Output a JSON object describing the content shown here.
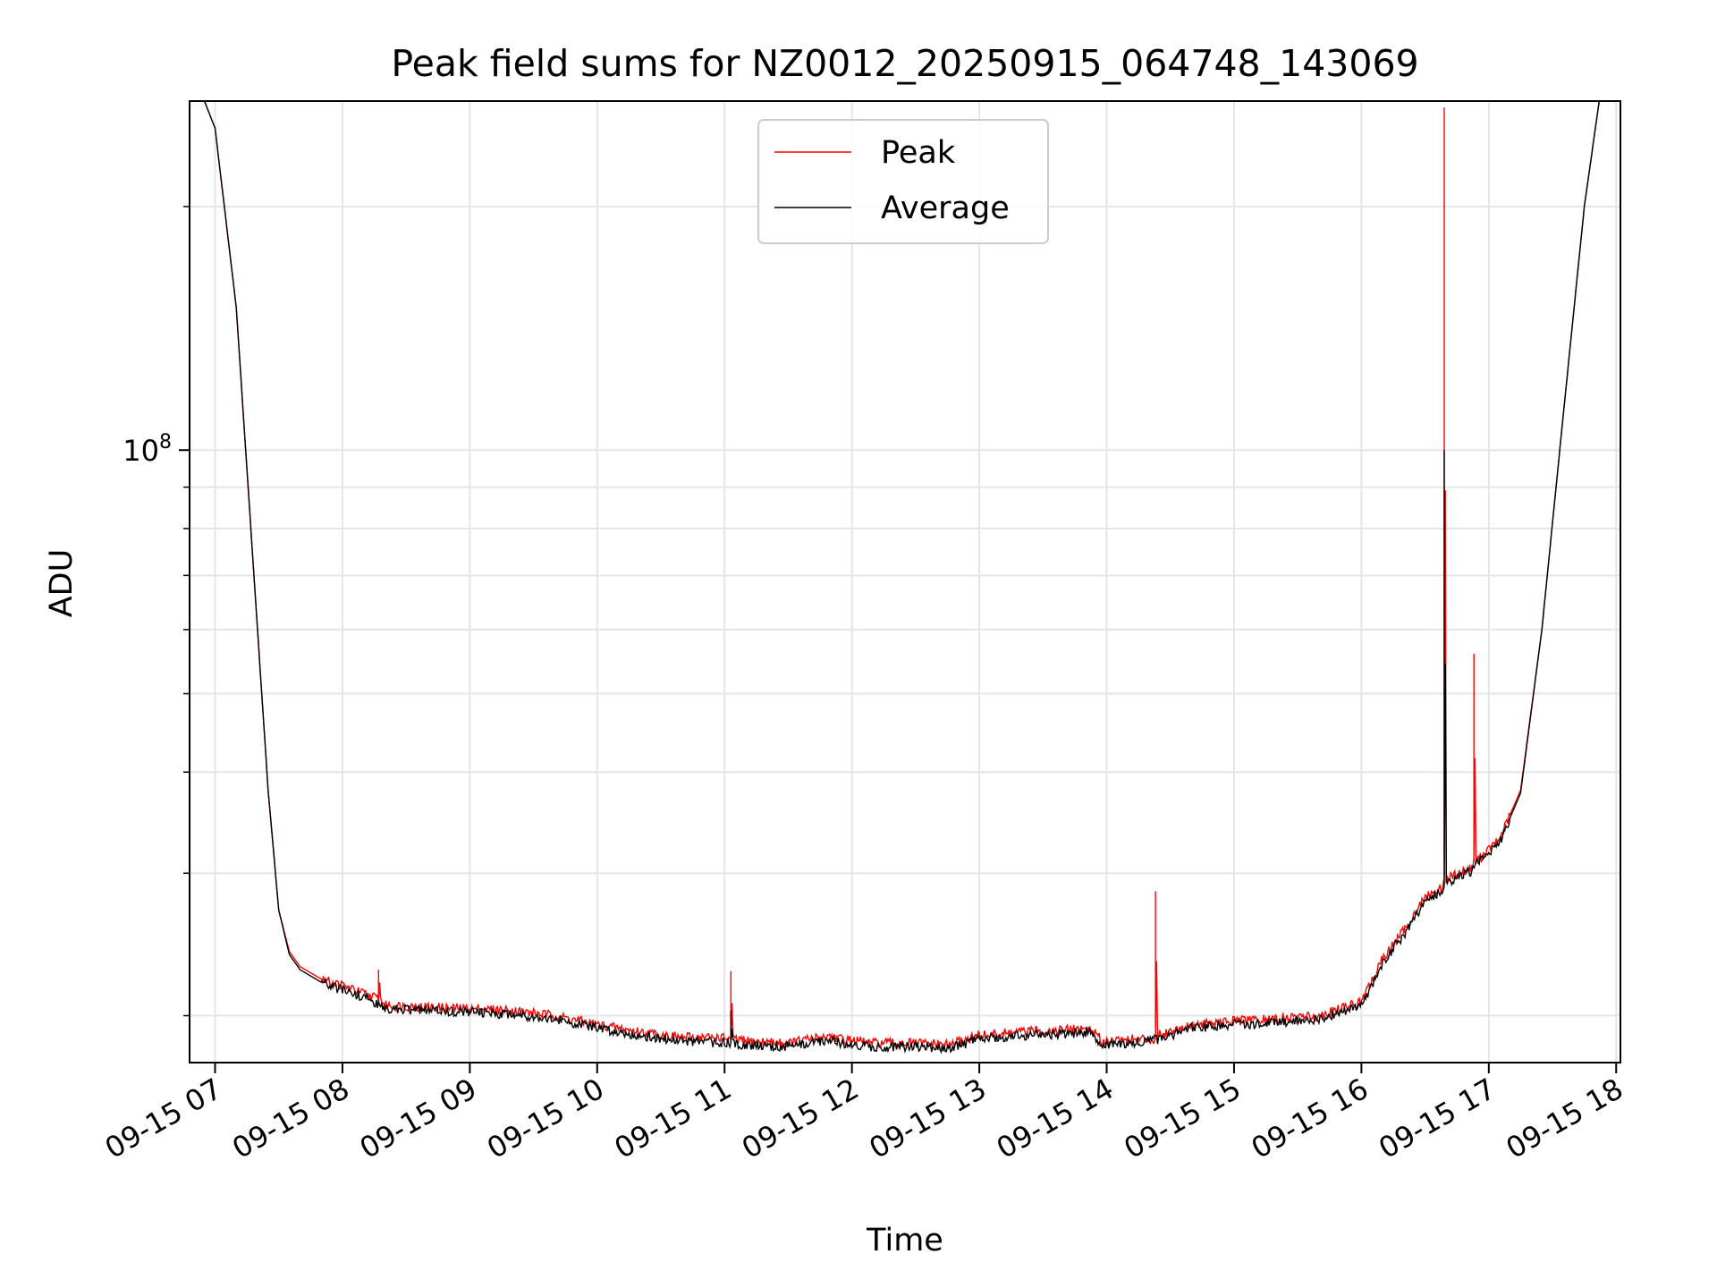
{
  "chart_data": {
    "type": "line",
    "title": "Peak field sums for NZ0012_20250915_064748_143069",
    "xlabel": "Time",
    "ylabel": "ADU",
    "yscale": "log",
    "xlim": [
      "2025-09-15 06:48",
      "2025-09-15 18:02"
    ],
    "ylim": [
      17500000,
      270000000
    ],
    "x_ticks": [
      "09-15 07",
      "09-15 08",
      "09-15 09",
      "09-15 10",
      "09-15 11",
      "09-15 12",
      "09-15 13",
      "09-15 14",
      "09-15 15",
      "09-15 16",
      "09-15 17",
      "09-15 18"
    ],
    "y_ticks": [
      {
        "value": 100000000,
        "base": "10",
        "exp": "8"
      }
    ],
    "grid": true,
    "legend": {
      "position": "top-center"
    },
    "series": [
      {
        "name": "Peak",
        "color": "#ff0000",
        "x": [
          "2025-09-15 06:48",
          "2025-09-15 06:55",
          "2025-09-15 07:00",
          "2025-09-15 07:10",
          "2025-09-15 07:20",
          "2025-09-15 07:25",
          "2025-09-15 07:30",
          "2025-09-15 07:35",
          "2025-09-15 07:40",
          "2025-09-15 07:50",
          "2025-09-15 08:00",
          "2025-09-15 08:10",
          "2025-09-15 08:17",
          "2025-09-15 08:17",
          "2025-09-15 08:18",
          "2025-09-15 08:20",
          "2025-09-15 08:40",
          "2025-09-15 09:00",
          "2025-09-15 09:20",
          "2025-09-15 09:40",
          "2025-09-15 10:00",
          "2025-09-15 10:20",
          "2025-09-15 10:40",
          "2025-09-15 10:58",
          "2025-09-15 11:03",
          "2025-09-15 11:03",
          "2025-09-15 11:04",
          "2025-09-15 11:10",
          "2025-09-15 11:30",
          "2025-09-15 11:50",
          "2025-09-15 11:55",
          "2025-09-15 12:10",
          "2025-09-15 12:30",
          "2025-09-15 12:45",
          "2025-09-15 13:00",
          "2025-09-15 13:20",
          "2025-09-15 13:40",
          "2025-09-15 13:52",
          "2025-09-15 13:58",
          "2025-09-15 14:10",
          "2025-09-15 14:23",
          "2025-09-15 14:23",
          "2025-09-15 14:24",
          "2025-09-15 14:40",
          "2025-09-15 15:00",
          "2025-09-15 15:20",
          "2025-09-15 15:40",
          "2025-09-15 16:00",
          "2025-09-15 16:10",
          "2025-09-15 16:20",
          "2025-09-15 16:30",
          "2025-09-15 16:38",
          "2025-09-15 16:39",
          "2025-09-15 16:39",
          "2025-09-15 16:40",
          "2025-09-15 16:52",
          "2025-09-15 16:53",
          "2025-09-15 16:53",
          "2025-09-15 16:54",
          "2025-09-15 17:05",
          "2025-09-15 17:15",
          "2025-09-15 17:25",
          "2025-09-15 17:35",
          "2025-09-15 17:45",
          "2025-09-15 17:52",
          "2025-09-15 18:02"
        ],
        "y": [
          270000000,
          270000000,
          250000000,
          150000000,
          60000000,
          38000000,
          27000000,
          24000000,
          23000000,
          22200000,
          21800000,
          21300000,
          21000000,
          22800000,
          21000000,
          20600000,
          20500000,
          20400000,
          20300000,
          20000000,
          19500000,
          19100000,
          18800000,
          18800000,
          18700000,
          22700000,
          18700000,
          18600000,
          18500000,
          18900000,
          18700000,
          18500000,
          18500000,
          18400000,
          18900000,
          19100000,
          19200000,
          19300000,
          18600000,
          18700000,
          18700000,
          28500000,
          18900000,
          19500000,
          19700000,
          19800000,
          20000000,
          20800000,
          23500000,
          25500000,
          28000000,
          28800000,
          29500000,
          265000000,
          29500000,
          30500000,
          31000000,
          56000000,
          31000000,
          33000000,
          38000000,
          60000000,
          110000000,
          200000000,
          270000000,
          270000000
        ]
      },
      {
        "name": "Average",
        "color": "#000000",
        "x": [
          "2025-09-15 06:48",
          "2025-09-15 06:55",
          "2025-09-15 07:00",
          "2025-09-15 07:10",
          "2025-09-15 07:20",
          "2025-09-15 07:25",
          "2025-09-15 07:30",
          "2025-09-15 07:35",
          "2025-09-15 07:40",
          "2025-09-15 07:50",
          "2025-09-15 08:00",
          "2025-09-15 08:10",
          "2025-09-15 08:20",
          "2025-09-15 08:40",
          "2025-09-15 09:00",
          "2025-09-15 09:20",
          "2025-09-15 09:40",
          "2025-09-15 10:00",
          "2025-09-15 10:20",
          "2025-09-15 10:40",
          "2025-09-15 11:03",
          "2025-09-15 11:03",
          "2025-09-15 11:04",
          "2025-09-15 11:10",
          "2025-09-15 11:30",
          "2025-09-15 11:50",
          "2025-09-15 11:55",
          "2025-09-15 12:10",
          "2025-09-15 12:30",
          "2025-09-15 12:45",
          "2025-09-15 13:00",
          "2025-09-15 13:20",
          "2025-09-15 13:40",
          "2025-09-15 13:52",
          "2025-09-15 13:58",
          "2025-09-15 14:10",
          "2025-09-15 14:24",
          "2025-09-15 14:40",
          "2025-09-15 15:00",
          "2025-09-15 15:20",
          "2025-09-15 15:40",
          "2025-09-15 16:00",
          "2025-09-15 16:10",
          "2025-09-15 16:20",
          "2025-09-15 16:30",
          "2025-09-15 16:38",
          "2025-09-15 16:39",
          "2025-09-15 16:39",
          "2025-09-15 16:40",
          "2025-09-15 16:52",
          "2025-09-15 16:53",
          "2025-09-15 17:05",
          "2025-09-15 17:15",
          "2025-09-15 17:25",
          "2025-09-15 17:35",
          "2025-09-15 17:45",
          "2025-09-15 17:52",
          "2025-09-15 18:02"
        ],
        "y": [
          270000000,
          270000000,
          250000000,
          150000000,
          60000000,
          38000000,
          27000000,
          23800000,
          22800000,
          22000000,
          21500000,
          21100000,
          20400000,
          20300000,
          20200000,
          20100000,
          19800000,
          19300000,
          18900000,
          18600000,
          18500000,
          20300000,
          18500000,
          18400000,
          18300000,
          18700000,
          18500000,
          18300000,
          18300000,
          18200000,
          18700000,
          18900000,
          19000000,
          19100000,
          18400000,
          18500000,
          18700000,
          19300000,
          19500000,
          19600000,
          19800000,
          20600000,
          23200000,
          25200000,
          27700000,
          28500000,
          29200000,
          100000000,
          29200000,
          30200000,
          30700000,
          32700000,
          37700000,
          60000000,
          110000000,
          200000000,
          270000000,
          270000000
        ]
      }
    ]
  }
}
